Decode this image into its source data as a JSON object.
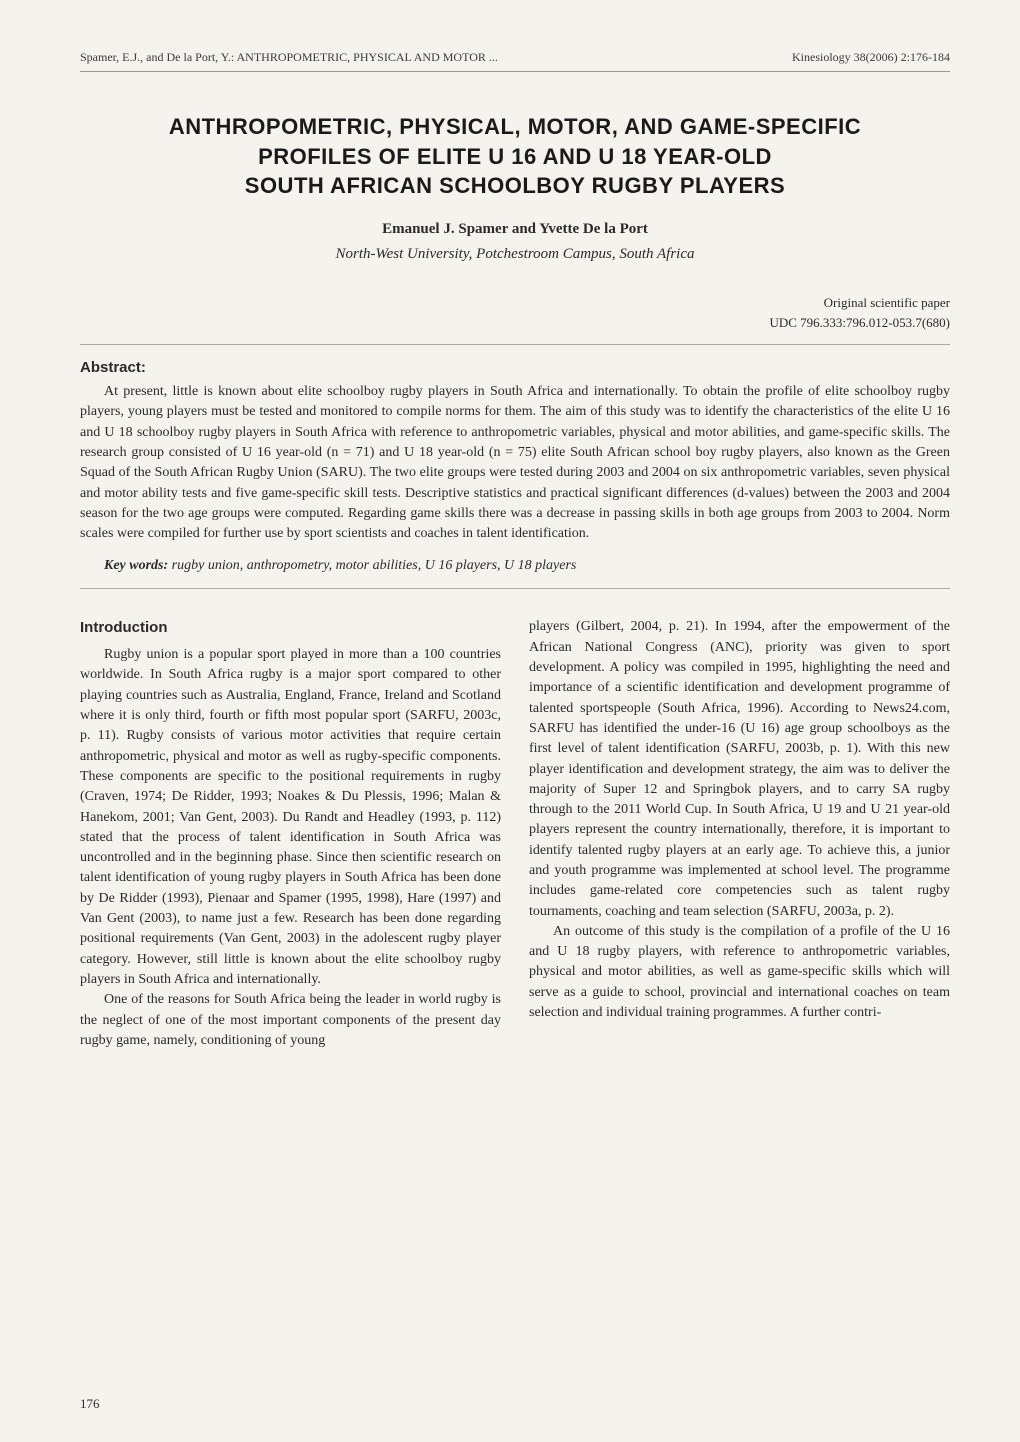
{
  "header": {
    "left": "Spamer, E.J., and De la Port, Y.: ANTHROPOMETRIC, PHYSICAL AND MOTOR ...",
    "right": "Kinesiology 38(2006) 2:176-184"
  },
  "title": {
    "line1": "ANTHROPOMETRIC, PHYSICAL, MOTOR, AND GAME-SPECIFIC",
    "line2": "PROFILES OF ELITE U 16 AND U 18 YEAR-OLD",
    "line3": "SOUTH AFRICAN SCHOOLBOY RUGBY PLAYERS"
  },
  "authors": "Emanuel J. Spamer and Yvette De la Port",
  "affiliation": "North-West University, Potchestroom Campus, South Africa",
  "paper_meta": {
    "type": "Original scientific paper",
    "udc": "UDC 796.333:796.012-053.7(680)"
  },
  "abstract": {
    "heading": "Abstract:",
    "text": "At present, little is known about elite schoolboy rugby players in South Africa and internationally. To obtain the profile of elite schoolboy rugby players, young players must be tested and monitored to compile norms for them. The aim of this study was to identify the characteristics of the elite U 16 and U 18 schoolboy rugby players in South Africa with reference to anthropometric variables, physical and motor abilities, and game-specific skills. The research group consisted of U 16 year-old (n = 71) and U 18 year-old (n = 75) elite South African school boy rugby players, also known as the Green Squad of the South African Rugby Union (SARU). The two elite groups were tested during 2003 and 2004 on six anthropometric variables, seven physical and motor ability tests and five game-specific skill tests. Descriptive statistics and practical significant differences (d-values) between the 2003 and 2004 season for the two age groups were computed. Regarding game skills there was a decrease in passing skills in both age groups from 2003 to 2004. Norm scales were compiled for further use by sport scientists and coaches in talent identification."
  },
  "keywords": {
    "label": "Key words:",
    "text": " rugby union, anthropometry, motor abilities, U 16 players, U 18 players"
  },
  "introduction": {
    "heading": "Introduction",
    "left_p1": "Rugby union is a popular sport played in more than a 100 countries worldwide. In South Africa rugby is a major sport compared to other playing countries such as Australia, England, France, Ireland and Scotland where it is only third, fourth or fifth most popular sport (SARFU, 2003c, p. 11). Rugby consists of various motor activities that require certain anthropometric, physical and motor as well as rugby-specific components. These components are specific to the positional requirements in rugby (Craven, 1974; De Ridder, 1993; Noakes & Du Plessis, 1996; Malan & Hanekom, 2001; Van Gent, 2003). Du Randt and Headley (1993, p. 112) stated that the process of talent identification in South Africa was uncontrolled and in the beginning phase. Since then scientific research on talent identification of young rugby players in South Africa has been done by De Ridder (1993), Pienaar and Spamer (1995, 1998), Hare (1997) and Van Gent (2003), to name just a few. Research has been done regarding positional requirements (Van Gent, 2003) in the adolescent rugby player category. However, still little is known about the elite schoolboy rugby players in South Africa and internationally.",
    "left_p2": "One of the reasons for South Africa being the leader in world rugby is the neglect of one of the most important components of the present day rugby game, namely, conditioning of young",
    "right_p1": "players (Gilbert, 2004, p. 21). In 1994, after the empowerment of the African National Congress (ANC), priority was given to sport development. A policy was compiled in 1995, highlighting the need and importance of a scientific identification and development programme of talented sportspeople (South Africa, 1996). According to News24.com, SARFU has identified the under-16 (U 16) age group schoolboys as the first level of talent identification (SARFU, 2003b, p. 1). With this new player identification and development strategy, the aim was to deliver the majority of Super 12 and Springbok players, and to carry SA rugby through to the 2011 World Cup. In South Africa, U 19 and U 21 year-old players represent the country internationally, therefore, it is important to identify talented rugby players at an early age. To achieve this, a junior and youth programme was implemented at school level. The programme includes game-related core competencies such as talent rugby tournaments, coaching and team selection (SARFU, 2003a, p. 2).",
    "right_p2": "An outcome of this study is the compilation of a profile of the U 16 and U 18 rugby players, with reference to anthropometric variables, physical and motor abilities, as well as game-specific skills which will serve as a guide to school, provincial and international coaches on team selection and individual training programmes. A further contri-"
  },
  "page_number": "176",
  "colors": {
    "background": "#f5f3ee",
    "text": "#2a2a2a",
    "border": "#999999"
  }
}
